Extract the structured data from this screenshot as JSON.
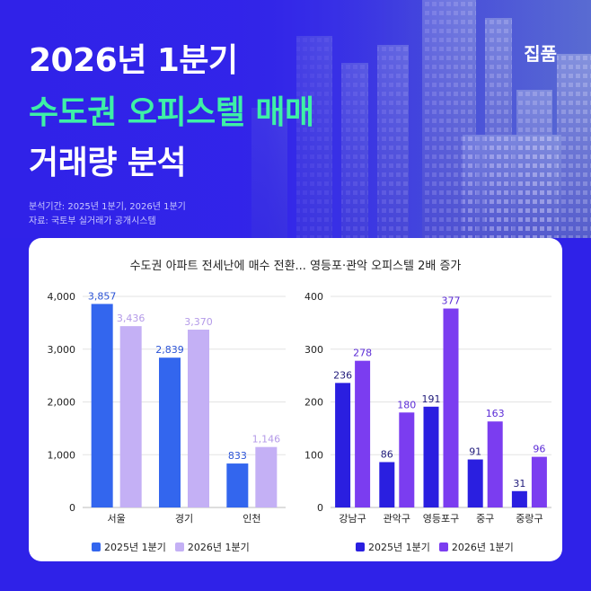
{
  "header": {
    "title_line1": "2026년 1분기",
    "title_line2": "수도권 오피스텔 매매",
    "title_line3": "거래량 분석",
    "brand": "집품",
    "period": "분석기간: 2025년 1분기, 2026년 1분기",
    "source": "자료: 국토부 실거래가 공개시스템"
  },
  "card": {
    "title": "수도권 아파트 전세난에 매수 전환... 영등포·관악 오피스텔 2배 증가"
  },
  "colors": {
    "background": "#2f22e8",
    "highlight_text": "#3ef0a6",
    "left_2025": "#3366ee",
    "left_2026": "#c4b0f5",
    "right_2025": "#2a1fe0",
    "right_2026": "#7b3df0"
  },
  "chart_data": [
    {
      "type": "bar",
      "categories": [
        "서울",
        "경기",
        "인천"
      ],
      "series": [
        {
          "name": "2025년 1분기",
          "values": [
            3857,
            2839,
            833
          ]
        },
        {
          "name": "2026년 1분기",
          "values": [
            3436,
            3370,
            1146
          ]
        }
      ],
      "value_labels": [
        [
          "3,857",
          "2,839",
          "833"
        ],
        [
          "3,436",
          "3,370",
          "1,146"
        ]
      ],
      "yticks": [
        "0",
        "1,000",
        "2,000",
        "3,000",
        "4,000"
      ],
      "ylim": [
        0,
        4000
      ],
      "grid": true,
      "legend": "bottom"
    },
    {
      "type": "bar",
      "categories": [
        "강남구",
        "관악구",
        "영등포구",
        "중구",
        "중랑구"
      ],
      "series": [
        {
          "name": "2025년 1분기",
          "values": [
            236,
            86,
            191,
            91,
            31
          ]
        },
        {
          "name": "2026년 1분기",
          "values": [
            278,
            180,
            377,
            163,
            96
          ]
        }
      ],
      "value_labels": [
        [
          "236",
          "86",
          "191",
          "91",
          "31"
        ],
        [
          "278",
          "180",
          "377",
          "163",
          "96"
        ]
      ],
      "yticks": [
        "0",
        "100",
        "200",
        "300",
        "400"
      ],
      "ylim": [
        0,
        400
      ],
      "grid": true,
      "legend": "bottom"
    }
  ]
}
